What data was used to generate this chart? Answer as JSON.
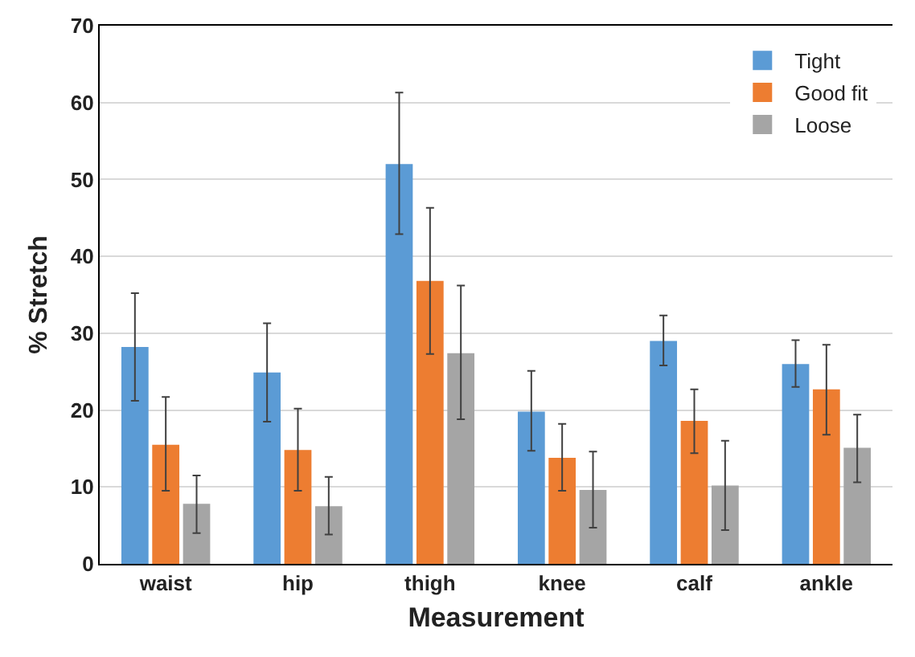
{
  "chart_data": {
    "type": "bar",
    "xlabel": "Measurement",
    "ylabel": "% Stretch",
    "categories": [
      "waist",
      "hip",
      "thigh",
      "knee",
      "calf",
      "ankle"
    ],
    "series": [
      {
        "name": "Tight",
        "color": "#5b9bd5",
        "values": [
          28.2,
          24.9,
          52.0,
          19.8,
          29.0,
          26.0
        ],
        "errors": [
          [
            21.2,
            35.2
          ],
          [
            18.5,
            31.3
          ],
          [
            42.9,
            61.3
          ],
          [
            14.7,
            25.1
          ],
          [
            25.8,
            32.3
          ],
          [
            23.0,
            29.1
          ]
        ]
      },
      {
        "name": "Good fit",
        "color": "#ed7d31",
        "values": [
          15.5,
          14.8,
          36.8,
          13.8,
          18.6,
          22.7
        ],
        "errors": [
          [
            9.5,
            21.7
          ],
          [
            9.5,
            20.2
          ],
          [
            27.3,
            46.3
          ],
          [
            9.5,
            18.2
          ],
          [
            14.4,
            22.7
          ],
          [
            16.8,
            28.5
          ]
        ]
      },
      {
        "name": "Loose",
        "color": "#a5a5a5",
        "values": [
          7.8,
          7.5,
          27.4,
          9.6,
          10.2,
          15.1
        ],
        "errors": [
          [
            4.0,
            11.5
          ],
          [
            3.8,
            11.3
          ],
          [
            18.8,
            36.2
          ],
          [
            4.7,
            14.6
          ],
          [
            4.4,
            16.0
          ],
          [
            10.6,
            19.4
          ]
        ]
      }
    ],
    "ylim": [
      0,
      70
    ],
    "yticks": [
      0,
      10,
      20,
      30,
      40,
      50,
      60,
      70
    ],
    "grid": "y",
    "legend": "top right"
  }
}
